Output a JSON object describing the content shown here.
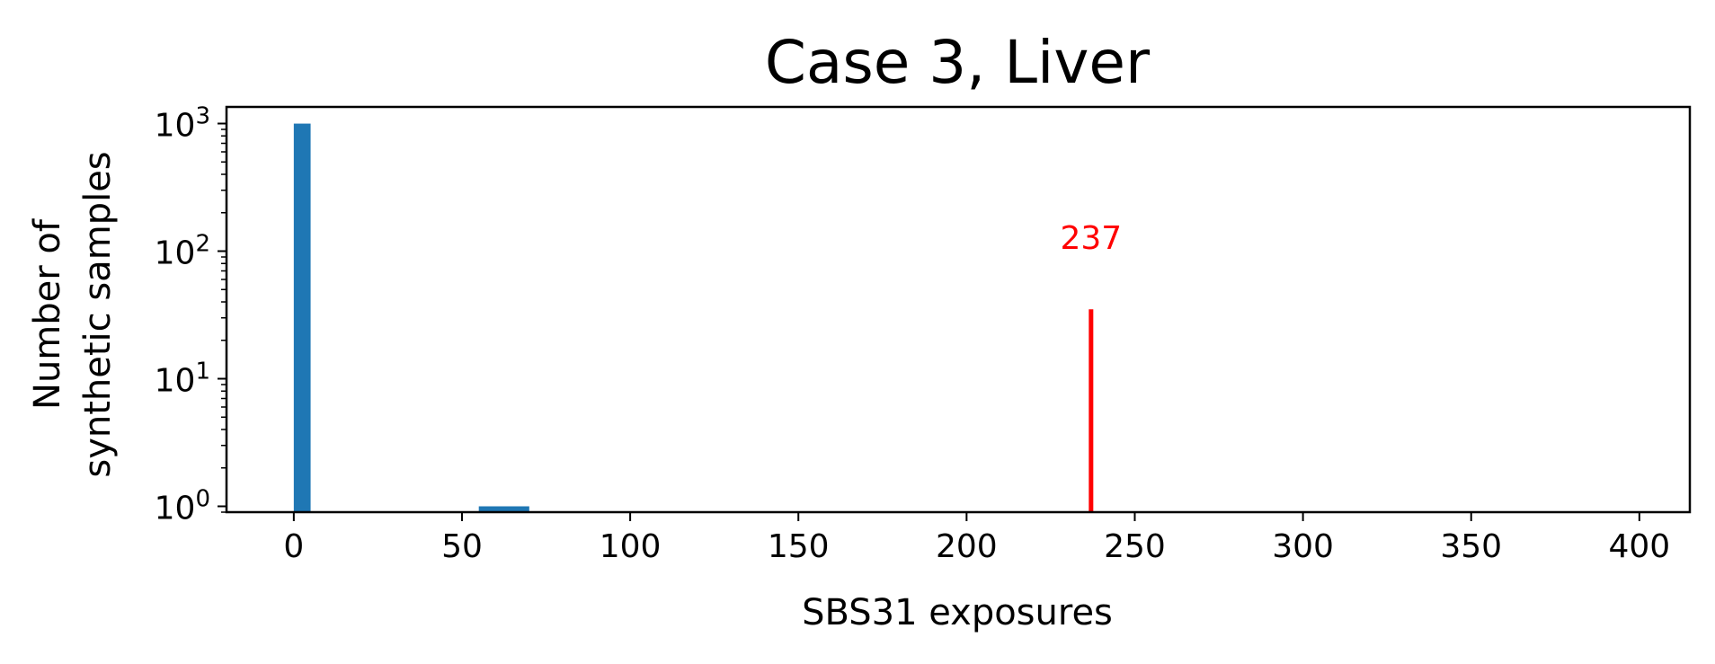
{
  "chart_data": {
    "type": "bar",
    "title": "Case 3, Liver",
    "xlabel": "SBS31 exposures",
    "ylabel_lines": [
      "Number of",
      "synthetic samples"
    ],
    "xlim": [
      -20,
      415
    ],
    "ylim": [
      0.9,
      1350
    ],
    "yscale": "log",
    "xticks": [
      0,
      50,
      100,
      150,
      200,
      250,
      300,
      350,
      400
    ],
    "yticks": [
      {
        "value": 1,
        "base": "10",
        "exp": "0"
      },
      {
        "value": 10,
        "base": "10",
        "exp": "1"
      },
      {
        "value": 100,
        "base": "10",
        "exp": "2"
      },
      {
        "value": 1000,
        "base": "10",
        "exp": "3"
      }
    ],
    "bars": [
      {
        "x0": 0,
        "x1": 5,
        "value": 999
      },
      {
        "x0": 55,
        "x1": 70,
        "value": 1
      }
    ],
    "bar_color": "#1f77b4",
    "marker": {
      "x": 237,
      "label": "237",
      "top_value": 35,
      "color": "#ff0000"
    },
    "grid": false,
    "legend": "none"
  }
}
